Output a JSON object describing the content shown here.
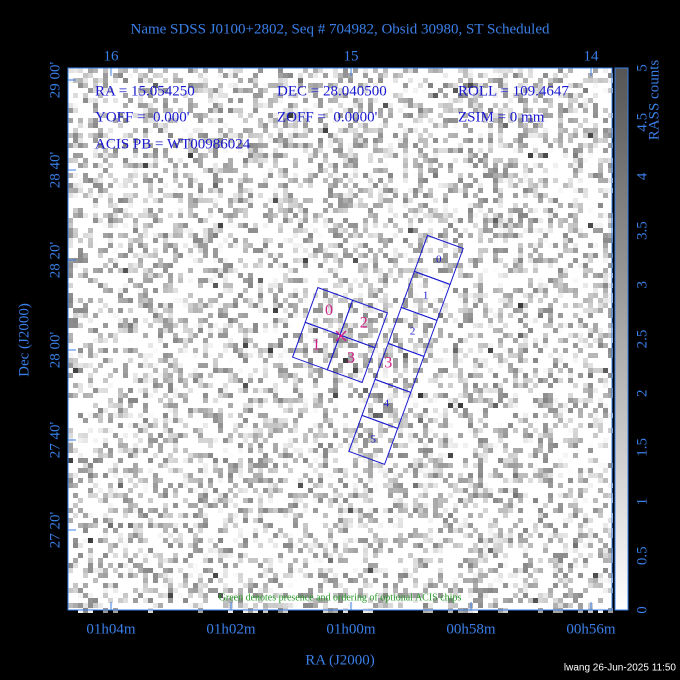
{
  "header": {
    "title": "Name SDSS J0100+2802, Seq # 704982, Obsid 30980, ST Scheduled"
  },
  "info": [
    [
      "RA = 15.054250",
      "DEC = 28.040500",
      "ROLL = 109.4647"
    ],
    [
      "YOFF =  0.000'",
      "ZOFF =  0.0000'",
      "ZSIM = 0 mm"
    ],
    [
      "ACIS PB = WT00986024"
    ]
  ],
  "axes": {
    "top_ticks": [
      "16",
      "15",
      "14"
    ],
    "bottom_ticks": [
      "01h04m",
      "01h02m",
      "01h00m",
      "00h58m",
      "00h56m"
    ],
    "left_ticks": [
      "29 00'",
      "28 40'",
      "28 20'",
      "28 00'",
      "27 40'",
      "27 20'"
    ],
    "x_label": "RA (J2000)",
    "y_label": "Dec (J2000)"
  },
  "colorbar": {
    "label": "RASS counts",
    "ticks": [
      "0",
      "0.5",
      "1",
      "1.5",
      "2",
      "2.5",
      "3",
      "3.5",
      "4",
      "4.5",
      "5"
    ]
  },
  "chips": {
    "i_array": [
      "0",
      "2",
      "1",
      "3"
    ],
    "s_array": [
      "0",
      "1",
      "2",
      "3",
      "4",
      "5"
    ]
  },
  "note": "Green denotes presence and ordering of optional ACIS chips",
  "footer": "lwang 26-Jun-2025 11:50"
}
